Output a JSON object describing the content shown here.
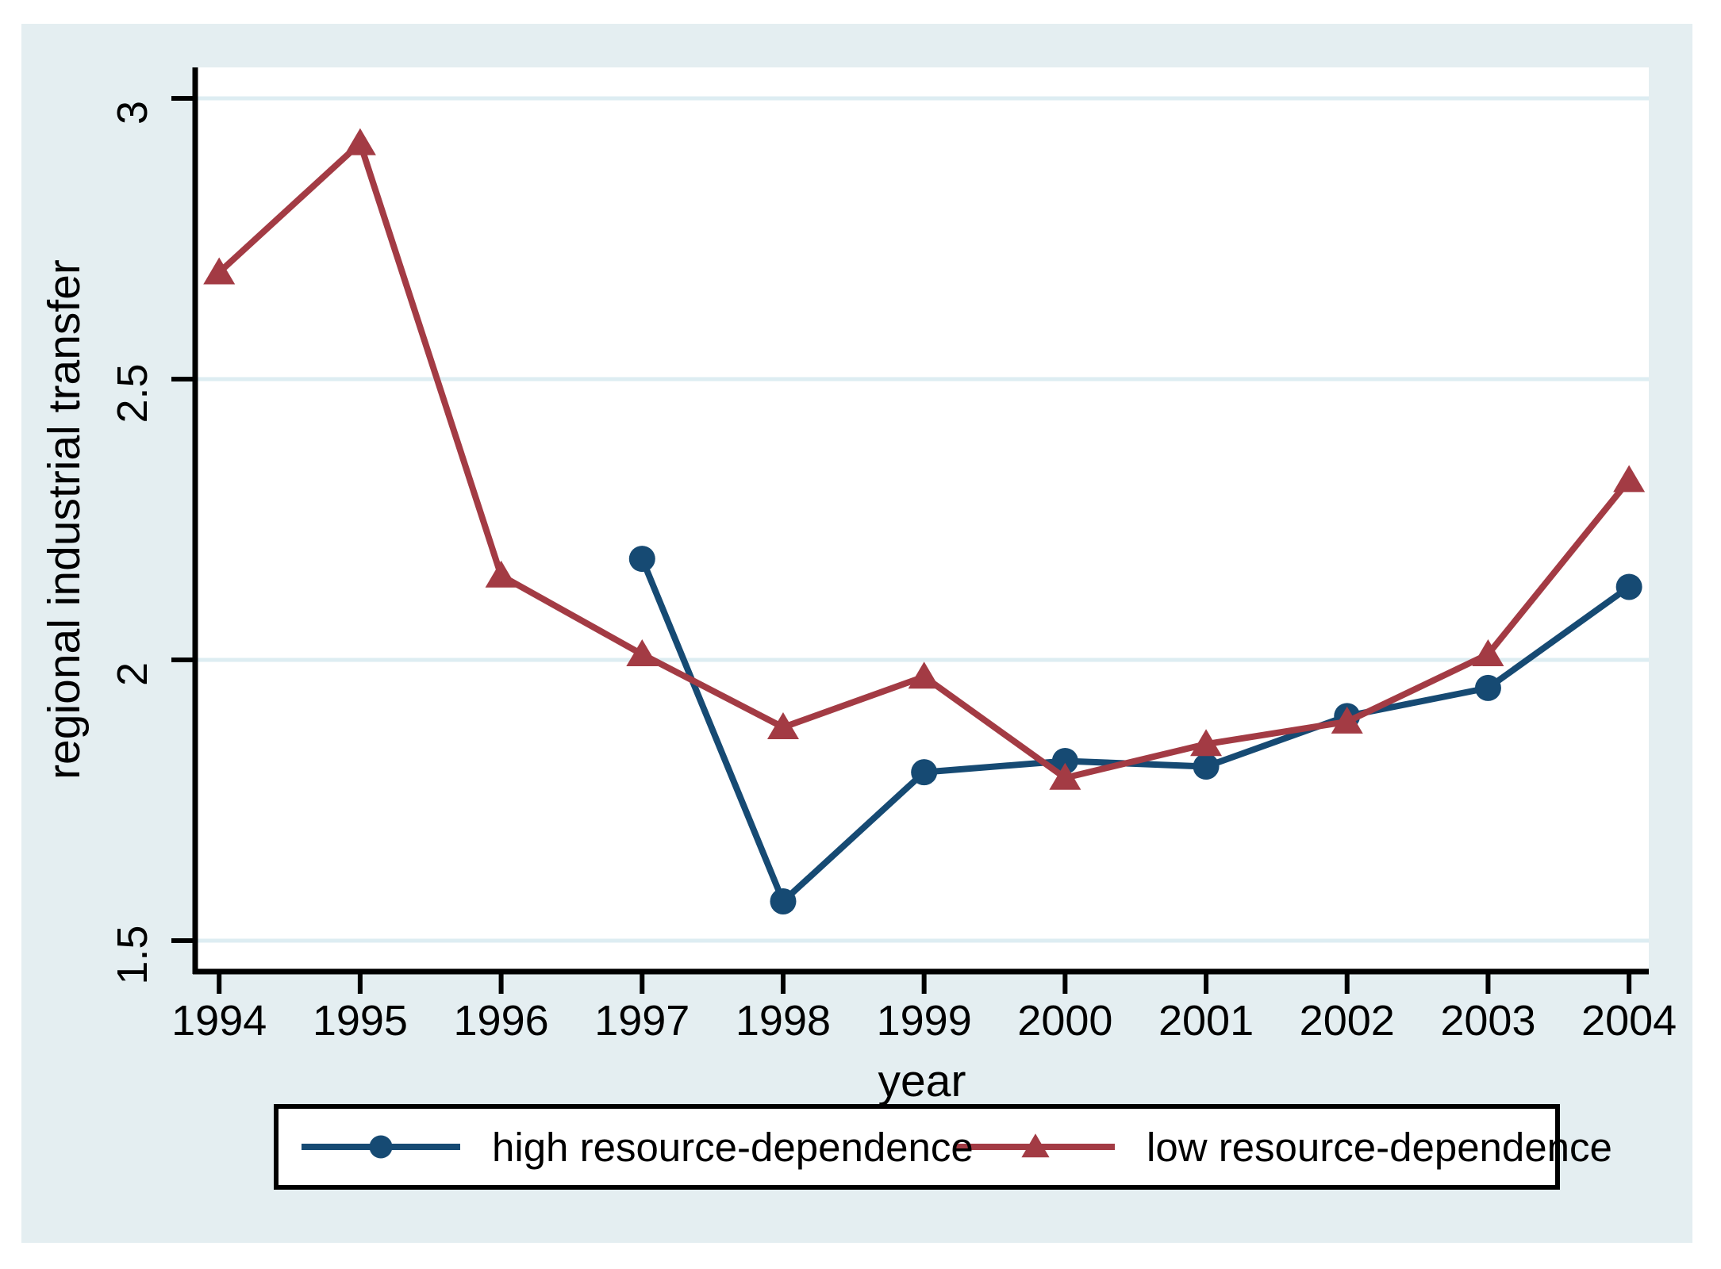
{
  "figure": {
    "background_color": "#e4eef1",
    "plot_background_color": "#ffffff",
    "grid_color": "#ddedf2",
    "axis_color": "#000000",
    "legend_border_color": "#000000",
    "legend_background_color": "#ffffff"
  },
  "chart_data": {
    "type": "line",
    "title": "",
    "xlabel": "year",
    "ylabel": "regional industrial transfer",
    "x_ticks": [
      1994,
      1995,
      1996,
      1997,
      1998,
      1999,
      2000,
      2001,
      2002,
      2003,
      2004
    ],
    "x_tick_labels": [
      "1994",
      "1995",
      "1996",
      "1997",
      "1998",
      "1999",
      "2000",
      "2001",
      "2002",
      "2003",
      "2004"
    ],
    "y_ticks": [
      1.5,
      2,
      2.5,
      3
    ],
    "y_tick_labels": [
      "1.5",
      "2",
      "2.5",
      "3"
    ],
    "xlim": [
      1993.83,
      2004.14
    ],
    "ylim": [
      1.445,
      3.055
    ],
    "grid": "horizontal",
    "legend_position": "bottom",
    "series": [
      {
        "name": "high resource-dependence",
        "color": "#164a73",
        "marker": "circle",
        "x": [
          1997,
          1998,
          1999,
          2000,
          2001,
          2002,
          2003,
          2004
        ],
        "values": [
          2.18,
          1.57,
          1.8,
          1.82,
          1.81,
          1.9,
          1.95,
          2.13
        ]
      },
      {
        "name": "low resource-dependence",
        "color": "#a33b44",
        "marker": "triangle",
        "x": [
          1994,
          1995,
          1996,
          1997,
          1998,
          1999,
          2000,
          2001,
          2002,
          2003,
          2004
        ],
        "values": [
          2.69,
          2.92,
          2.15,
          2.01,
          1.88,
          1.97,
          1.79,
          1.85,
          1.89,
          2.01,
          2.32
        ]
      }
    ]
  }
}
